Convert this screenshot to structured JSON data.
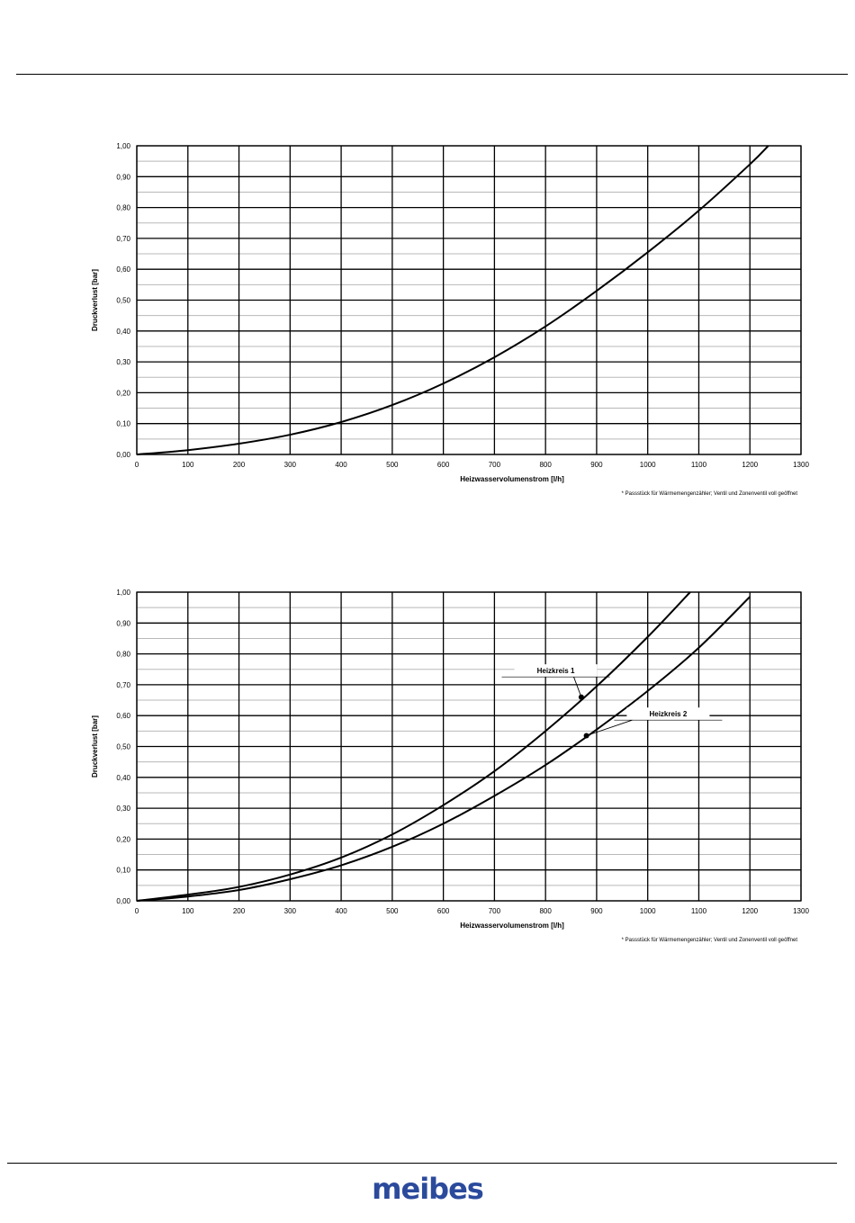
{
  "colors": {
    "brand": "#2b4a9c",
    "line": "#000000",
    "grid_minor": "#b8b8b8"
  },
  "logo_text": "meibes",
  "chart_data": [
    {
      "type": "line",
      "xlabel": "Heizwasservolumenstrom  [l/h]",
      "ylabel": "Druckverlust  [bar]",
      "footnote": "* Passstück für Wärmemengenzähler; Ventil und Zonenventil voll geöffnet",
      "xlim": [
        0,
        1300
      ],
      "ylim": [
        0,
        1.0
      ],
      "xticks": [
        "0",
        "100",
        "200",
        "300",
        "400",
        "500",
        "600",
        "700",
        "800",
        "900",
        "1000",
        "1100",
        "1200",
        "1300"
      ],
      "yticks": [
        "0,00",
        "0,10",
        "0,20",
        "0,30",
        "0,40",
        "0,50",
        "0,60",
        "0,70",
        "0,80",
        "0,90",
        "1,00"
      ],
      "grid": true,
      "series": [
        {
          "name": "",
          "x": [
            0,
            100,
            200,
            300,
            400,
            500,
            600,
            700,
            800,
            900,
            1000,
            1100,
            1200,
            1236
          ],
          "y": [
            0,
            0.014,
            0.035,
            0.064,
            0.105,
            0.16,
            0.23,
            0.315,
            0.415,
            0.53,
            0.655,
            0.79,
            0.94,
            1.0
          ]
        }
      ],
      "annotations": []
    },
    {
      "type": "line",
      "xlabel": "Heizwasservolumenstrom  [l/h]",
      "ylabel": "Druckverlust  [bar]",
      "footnote": "* Passstück für Wärmemengenzähler; Ventil und Zonenventil voll geöffnet",
      "xlim": [
        0,
        1300
      ],
      "ylim": [
        0,
        1.0
      ],
      "xticks": [
        "0",
        "100",
        "200",
        "300",
        "400",
        "500",
        "600",
        "700",
        "800",
        "900",
        "1000",
        "1100",
        "1200",
        "1300"
      ],
      "yticks": [
        "0,00",
        "0,10",
        "0,20",
        "0,30",
        "0,40",
        "0,50",
        "0,60",
        "0,70",
        "0,80",
        "0,90",
        "1,00"
      ],
      "grid": true,
      "series": [
        {
          "name": "Heizkreis  1",
          "x": [
            0,
            100,
            200,
            300,
            400,
            500,
            600,
            700,
            800,
            900,
            1000,
            1083
          ],
          "y": [
            0,
            0.02,
            0.045,
            0.085,
            0.14,
            0.215,
            0.31,
            0.42,
            0.55,
            0.695,
            0.855,
            1.0
          ]
        },
        {
          "name": "Heizkreis  2",
          "x": [
            0,
            100,
            200,
            300,
            400,
            500,
            600,
            700,
            800,
            900,
            1000,
            1100,
            1200
          ],
          "y": [
            0,
            0.014,
            0.035,
            0.07,
            0.115,
            0.175,
            0.25,
            0.34,
            0.44,
            0.555,
            0.68,
            0.82,
            0.985
          ]
        }
      ],
      "annotations": [
        {
          "series": 0,
          "label": "Heizkreis  1",
          "point": [
            870,
            0.66
          ],
          "label_at": [
            820,
            0.74
          ]
        },
        {
          "series": 1,
          "label": "Heizkreis  2",
          "point": [
            880,
            0.535
          ],
          "label_at": [
            1040,
            0.6
          ]
        }
      ]
    }
  ]
}
